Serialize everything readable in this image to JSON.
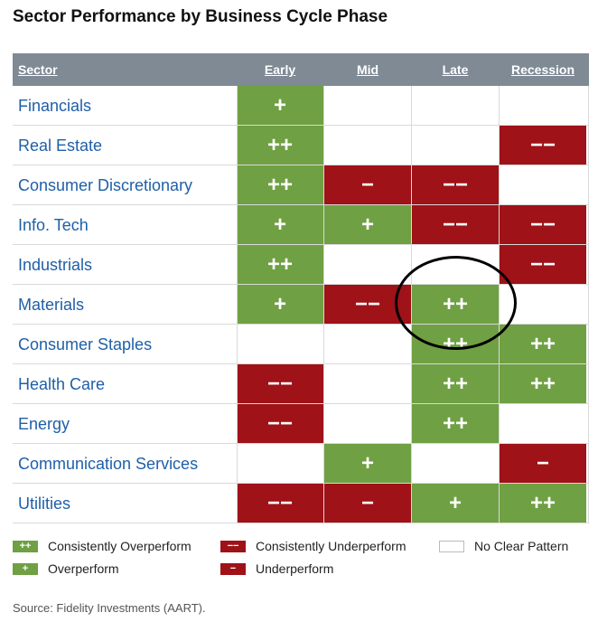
{
  "title": "Sector Performance by Business Cycle Phase",
  "source": "Source: Fidelity Investments (AART).",
  "colors": {
    "green": "#6fa043",
    "red": "#9e1218",
    "header": "#7f8a95",
    "sector_text": "#1f5fa8"
  },
  "chart_data": {
    "type": "table",
    "title": "Sector Performance by Business Cycle Phase",
    "header_sector": "Sector",
    "phases": [
      "Early",
      "Mid",
      "Late",
      "Recession"
    ],
    "rows": [
      {
        "sector": "Financials",
        "values": [
          "+",
          "",
          "",
          ""
        ]
      },
      {
        "sector": "Real Estate",
        "values": [
          "++",
          "",
          "",
          "−−"
        ]
      },
      {
        "sector": "Consumer Discretionary",
        "values": [
          "++",
          "−",
          "−−",
          ""
        ]
      },
      {
        "sector": "Info. Tech",
        "values": [
          "+",
          "+",
          "−−",
          "−−"
        ]
      },
      {
        "sector": "Industrials",
        "values": [
          "++",
          "",
          "",
          "−−"
        ]
      },
      {
        "sector": "Materials",
        "values": [
          "+",
          "−−",
          "++",
          ""
        ]
      },
      {
        "sector": "Consumer Staples",
        "values": [
          "",
          "",
          "++",
          "++"
        ]
      },
      {
        "sector": "Health Care",
        "values": [
          "−−",
          "",
          "++",
          "++"
        ]
      },
      {
        "sector": "Energy",
        "values": [
          "−−",
          "",
          "++",
          ""
        ]
      },
      {
        "sector": "Communication Services",
        "values": [
          "",
          "+",
          "",
          "−"
        ]
      },
      {
        "sector": "Utilities",
        "values": [
          "−−",
          "−",
          "+",
          "++"
        ]
      }
    ],
    "annotation": "circle around Materials / Late"
  },
  "legend": [
    {
      "symbol": "++",
      "label": "Consistently Overperform",
      "kind": "green"
    },
    {
      "symbol": "−−",
      "label": "Consistently Underperform",
      "kind": "red"
    },
    {
      "symbol": "",
      "label": "No Clear Pattern",
      "kind": "none"
    },
    {
      "symbol": "+",
      "label": "Overperform",
      "kind": "green"
    },
    {
      "symbol": "−",
      "label": "Underperform",
      "kind": "red"
    }
  ]
}
